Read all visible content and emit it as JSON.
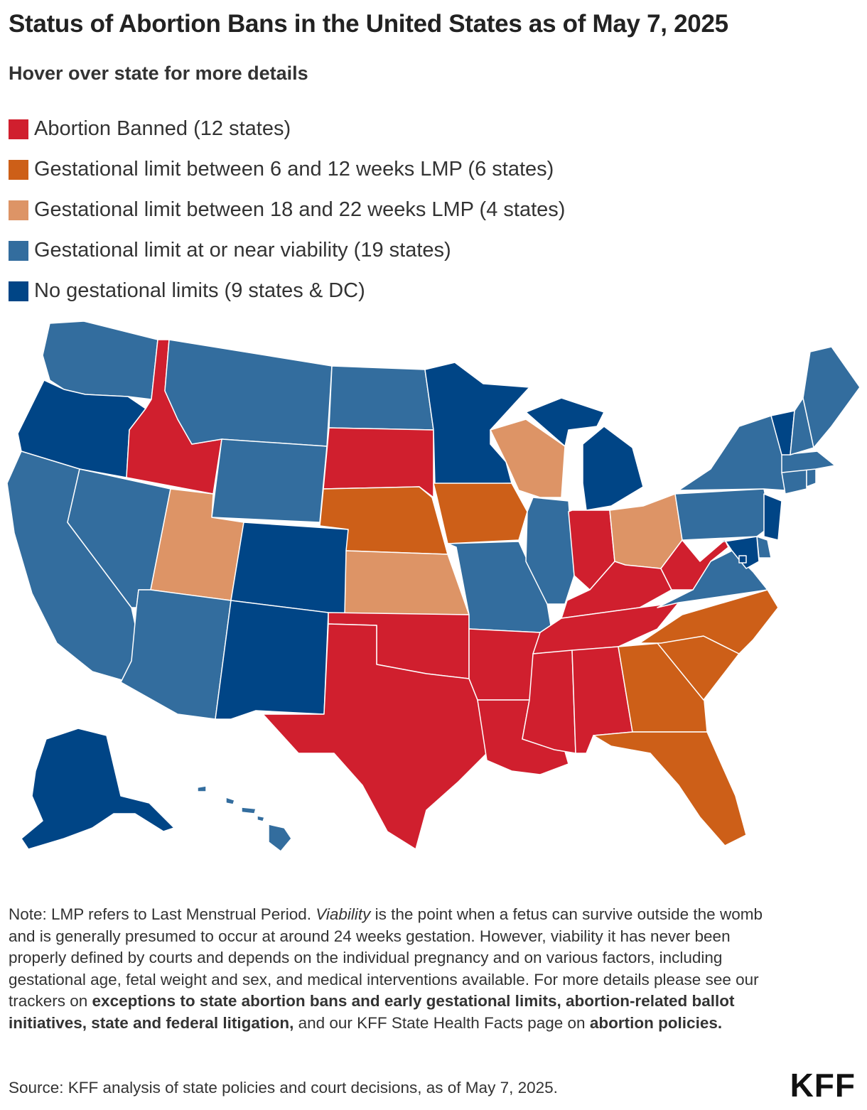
{
  "title": "Status of Abortion Bans in the United States as of May 7, 2025",
  "subtitle": "Hover over state for more details",
  "legend": [
    {
      "label": "Abortion Banned (12 states)",
      "color": "#d01f2e"
    },
    {
      "label": "Gestational limit between 6 and 12 weeks LMP (6 states)",
      "color": "#cd5f18"
    },
    {
      "label": "Gestational limit between 18 and 22 weeks LMP (4 states)",
      "color": "#dd9466"
    },
    {
      "label": "Gestational limit at or near viability (19 states)",
      "color": "#336d9e"
    },
    {
      "label": "No gestational limits (9 states & DC)",
      "color": "#004586"
    }
  ],
  "categories": {
    "banned": [
      "ID",
      "SD",
      "TX",
      "OK",
      "AR",
      "LA",
      "MS",
      "AL",
      "TN",
      "KY",
      "IN",
      "WV"
    ],
    "limit_6_12": [
      "NE",
      "IA",
      "GA",
      "SC",
      "NC",
      "FL"
    ],
    "limit_18_22": [
      "UT",
      "KS",
      "WI",
      "OH"
    ],
    "viability": [
      "WA",
      "MT",
      "ND",
      "WY",
      "NV",
      "CA",
      "AZ",
      "MO",
      "IL",
      "PA",
      "NY",
      "ME",
      "NH",
      "MA",
      "CT",
      "RI",
      "VA",
      "DE",
      "HI"
    ],
    "no_limits": [
      "OR",
      "CO",
      "NM",
      "MN",
      "MI",
      "VT",
      "NJ",
      "MD",
      "AK",
      "DC"
    ]
  },
  "note": {
    "part1": "Note: LMP refers to Last Menstrual Period. ",
    "viability_word": "Viability",
    "part2": " is the point when a fetus can survive outside the womb and is generally presumed to occur at around 24 weeks gestation. However, viability it has never been properly defined by courts and depends on the individual pregnancy and on various factors, including gestational age, fetal weight and sex, and medical interventions available. For more details please see our trackers on ",
    "link1": "exceptions to state abortion bans and early gestational limits, abortion-related ballot initiatives, state and federal litigation,",
    "part3": " and our KFF State Health Facts page on ",
    "link2": "abortion policies."
  },
  "source": "Source: KFF analysis of state policies and court decisions, as of May 7, 2025.",
  "logo": "KFF"
}
